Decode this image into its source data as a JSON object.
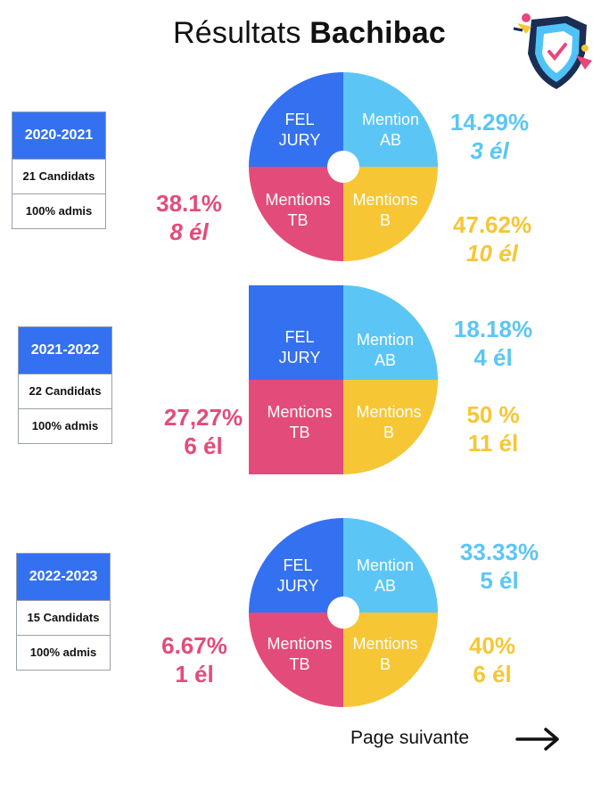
{
  "header": {
    "title_prefix": "Résultats",
    "title_bold": "Bachibac"
  },
  "quadrant_labels": {
    "fel_jury": [
      "FEL",
      "JURY"
    ],
    "mention_ab": [
      "Mention",
      "AB"
    ],
    "mentions_tb": [
      "Mentions",
      "TB"
    ],
    "mentions_b": [
      "Mentions",
      "B"
    ]
  },
  "colors": {
    "fel_jury": "#3471f0",
    "mention_ab": "#5bc6f5",
    "mentions_b": "#f6c634",
    "mentions_tb": "#e34c7a"
  },
  "years": [
    {
      "label": "2020-2021",
      "candidates": "21 Candidats",
      "admis": "100% admis",
      "ab": {
        "pct": "14.29%",
        "count": "3 él"
      },
      "b": {
        "pct": "47.62%",
        "count": "10 él"
      },
      "tb": {
        "pct": "38.1%",
        "count": "8 él"
      }
    },
    {
      "label": "2021-2022",
      "candidates": "22 Candidats",
      "admis": "100% admis",
      "ab": {
        "pct": "18.18%",
        "count": "4 él"
      },
      "b": {
        "pct": "50 %",
        "count": "11 él"
      },
      "tb": {
        "pct": "27,27%",
        "count": "6 él"
      }
    },
    {
      "label": "2022-2023",
      "candidates": "15 Candidats",
      "admis": "100% admis",
      "ab": {
        "pct": "33.33%",
        "count": "5 él"
      },
      "b": {
        "pct": "40%",
        "count": "6 él"
      },
      "tb": {
        "pct": "6.67%",
        "count": "1 él"
      }
    }
  ],
  "footer": {
    "next_label": "Page suivante"
  },
  "icons": {
    "logo": "shield-check-logo-icon",
    "next": "arrow-right-icon"
  }
}
